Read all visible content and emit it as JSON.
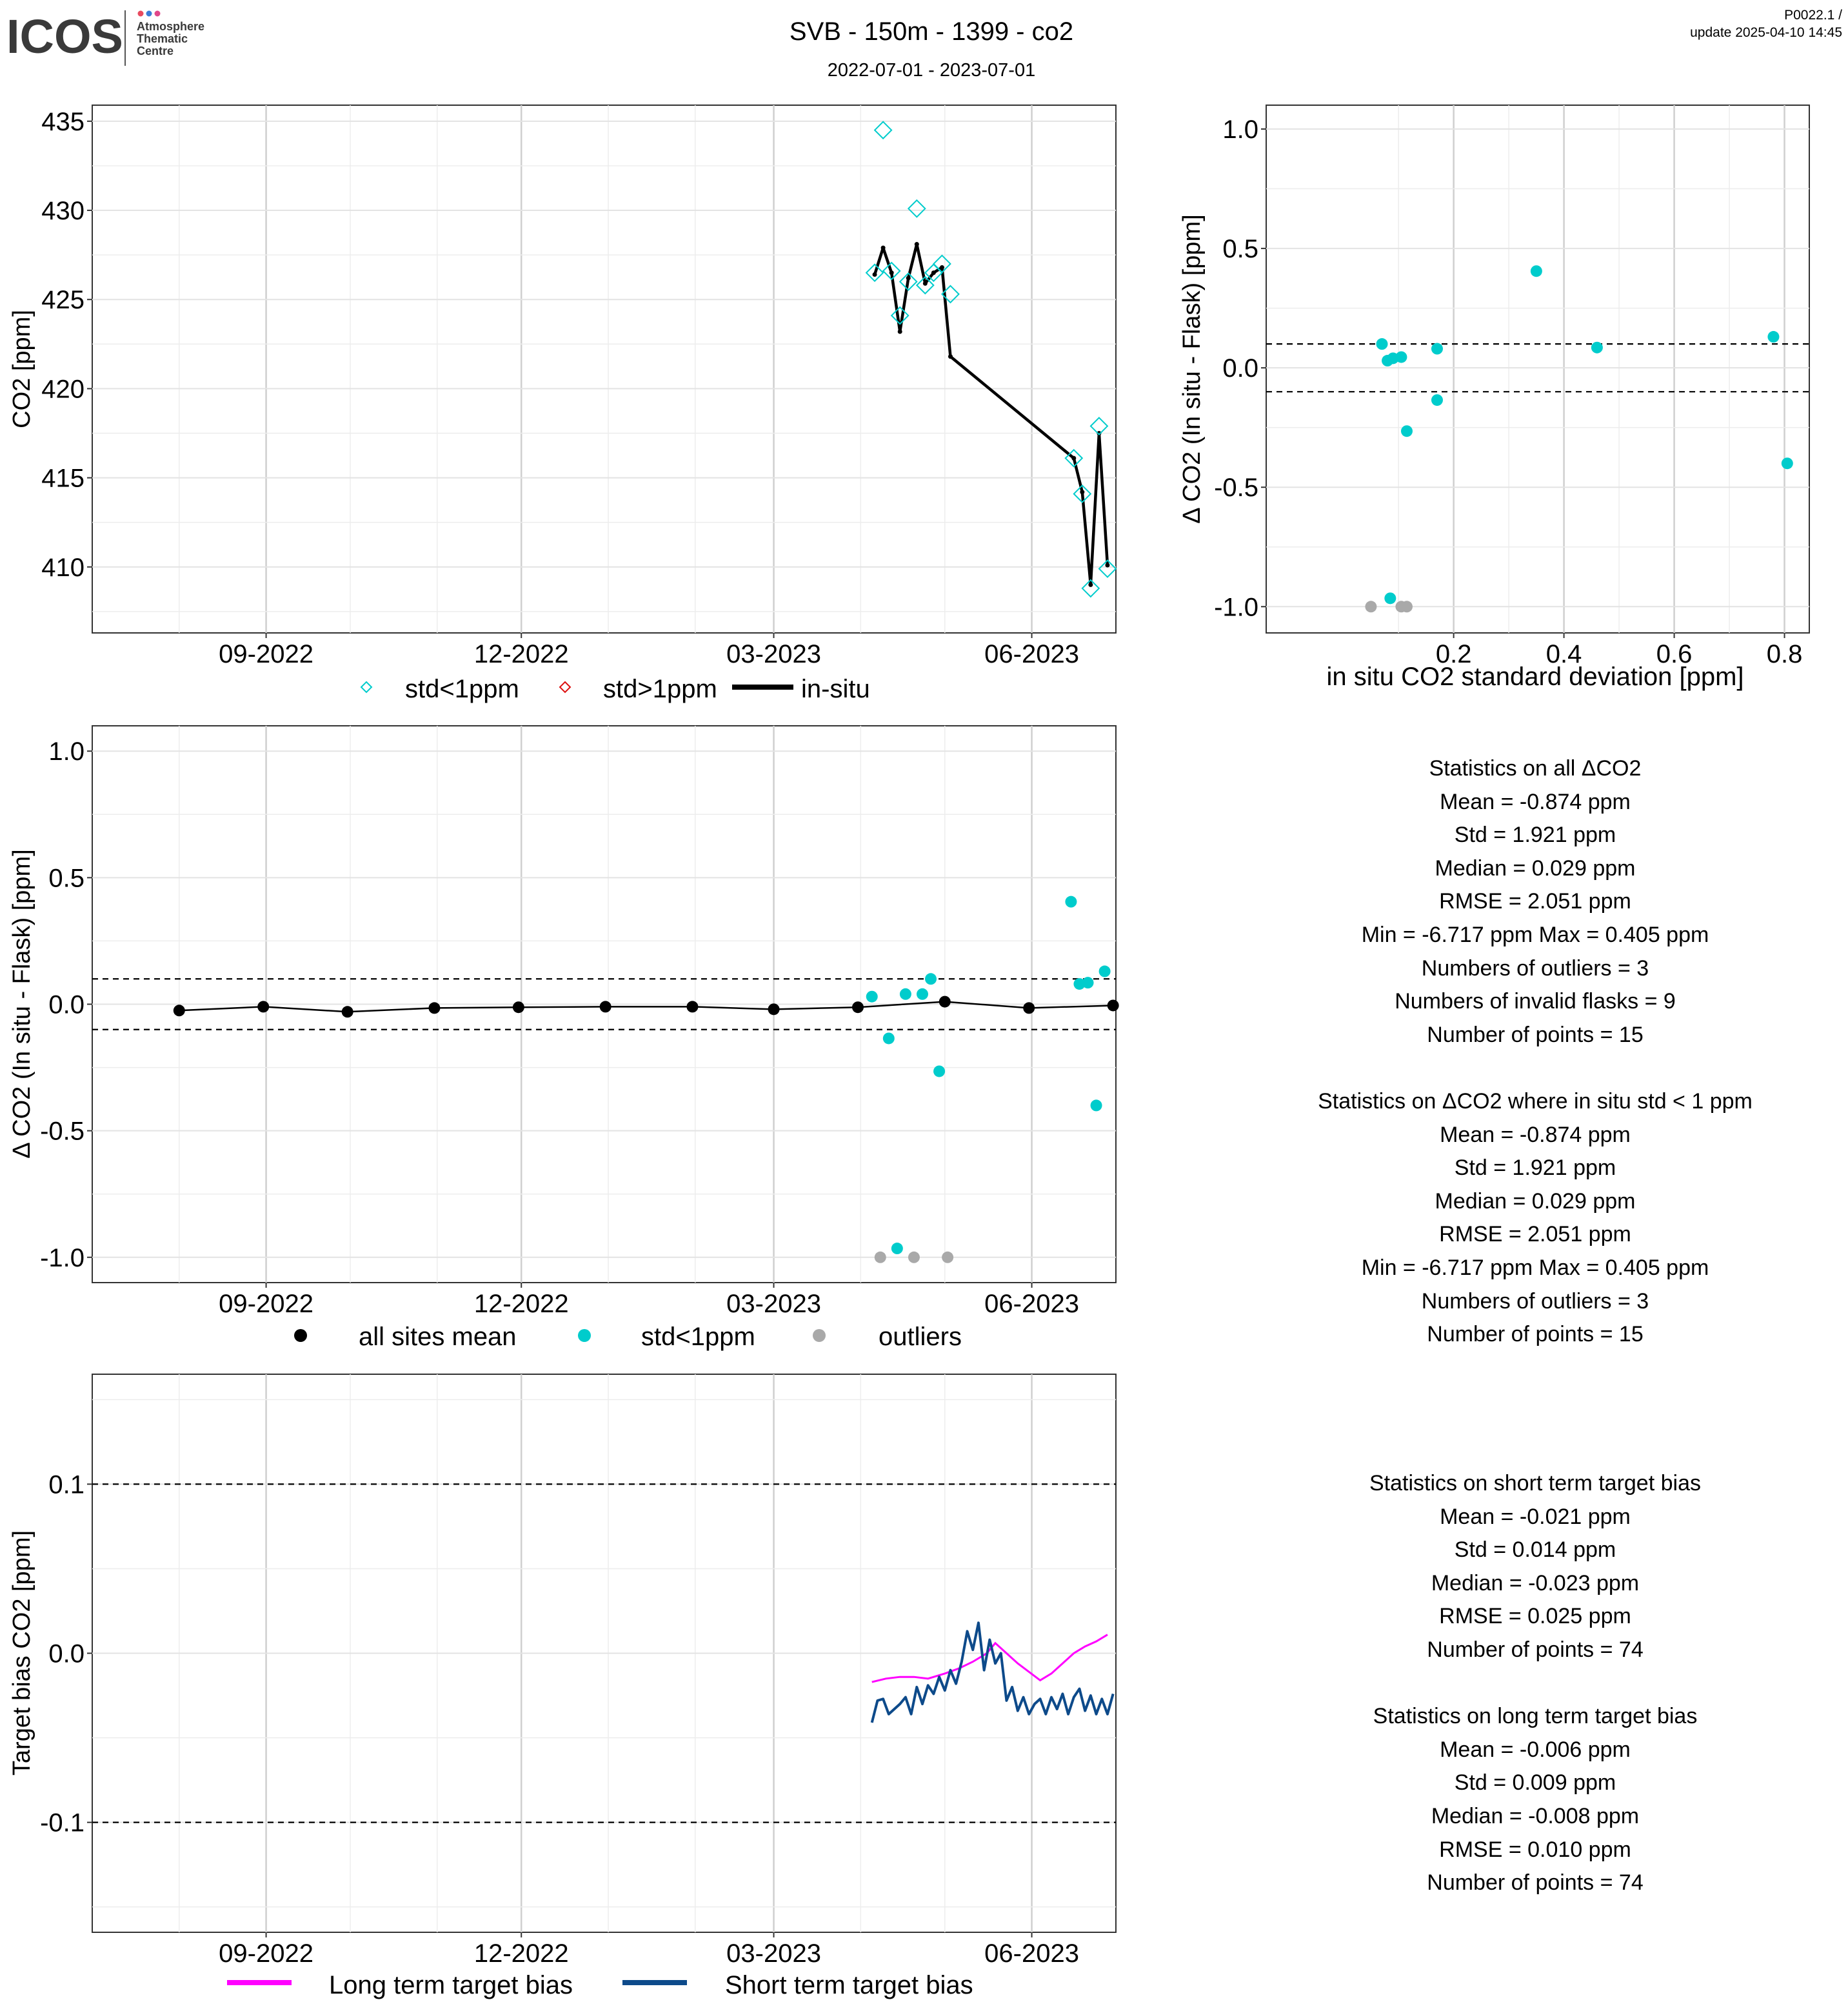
{
  "header": {
    "logo_text": "ICOS",
    "logo_sub": [
      "Atmosphere",
      "Thematic",
      "Centre"
    ],
    "title": "SVB - 150m - 1399 - co2",
    "date_range": "2022-07-01 - 2023-07-01",
    "version": "P0022.1 /",
    "update": "update  2025-04-10 14:45"
  },
  "colors": {
    "teal": "#00CCCC",
    "red": "#DD1111",
    "black": "#000000",
    "grey": "#A9A9A9",
    "magenta": "#FF00FF",
    "navy": "#0D4A8A"
  },
  "chart_data": [
    {
      "id": "co2_timeseries",
      "type": "line+scatter",
      "ylabel": "CO2 [ppm]",
      "xlim": [
        "2022-07-01",
        "2023-07-01"
      ],
      "ylim": [
        406.3,
        435.9
      ],
      "y_ticks": [
        410,
        415,
        420,
        425,
        430,
        435
      ],
      "x_ticks": [
        "2022-09-01",
        "2022-12-01",
        "2023-03-01",
        "2023-06-01"
      ],
      "x_tick_labels": [
        "09-2022",
        "12-2022",
        "03-2023",
        "06-2023"
      ],
      "grid": true,
      "legend_position": "bottom",
      "legend": [
        "std<1ppm",
        "std>1ppm",
        "in-situ"
      ],
      "series": [
        {
          "name": "std<1ppm",
          "points": [
            [
              "2023-04-06",
              426.5
            ],
            [
              "2023-04-09",
              434.5
            ],
            [
              "2023-04-12",
              426.6
            ],
            [
              "2023-04-15",
              424.1
            ],
            [
              "2023-04-18",
              426.0
            ],
            [
              "2023-04-21",
              430.1
            ],
            [
              "2023-04-24",
              425.8
            ],
            [
              "2023-04-27",
              426.5
            ],
            [
              "2023-04-30",
              427.0
            ],
            [
              "2023-05-03",
              425.3
            ],
            [
              "2023-06-16",
              416.1
            ],
            [
              "2023-06-19",
              414.1
            ],
            [
              "2023-06-22",
              408.8
            ],
            [
              "2023-06-25",
              417.9
            ],
            [
              "2023-06-28",
              409.9
            ]
          ]
        },
        {
          "name": "in-situ",
          "points": [
            [
              "2023-04-06",
              426.4
            ],
            [
              "2023-04-09",
              427.9
            ],
            [
              "2023-04-12",
              426.5
            ],
            [
              "2023-04-15",
              423.2
            ],
            [
              "2023-04-18",
              426.2
            ],
            [
              "2023-04-21",
              428.1
            ],
            [
              "2023-04-24",
              425.9
            ],
            [
              "2023-04-27",
              426.5
            ],
            [
              "2023-04-30",
              426.8
            ],
            [
              "2023-05-03",
              421.8
            ],
            [
              "2023-06-16",
              416.1
            ],
            [
              "2023-06-19",
              414.2
            ],
            [
              "2023-06-22",
              409.0
            ],
            [
              "2023-06-25",
              417.5
            ],
            [
              "2023-06-28",
              410.1
            ]
          ]
        }
      ]
    },
    {
      "id": "delta_vs_std",
      "type": "scatter",
      "xlabel": "in situ CO2 standard deviation [ppm]",
      "ylabel": "Δ CO2 (In situ - Flask) [ppm]",
      "xlim": [
        -0.14,
        0.845
      ],
      "ylim": [
        -1.11,
        1.1
      ],
      "x_ticks": [
        0.2,
        0.4,
        0.6,
        0.8
      ],
      "x_tick_labels": [
        "0.2",
        "0.4",
        "0.6",
        "0.8"
      ],
      "y_ticks": [
        -1.0,
        -0.5,
        0.0,
        0.5,
        1.0
      ],
      "y_tick_labels": [
        "-1.0",
        "-0.5",
        "0.0",
        "0.5",
        "1.0"
      ],
      "ref_lines": [
        0.1,
        -0.1
      ],
      "grid": true,
      "series": [
        {
          "name": "std<1ppm",
          "points": [
            [
              0.07,
              0.1
            ],
            [
              0.08,
              0.03
            ],
            [
              0.09,
              0.04
            ],
            [
              0.105,
              0.045
            ],
            [
              0.17,
              0.08
            ],
            [
              0.17,
              -0.135
            ],
            [
              0.115,
              -0.265
            ],
            [
              0.35,
              0.405
            ],
            [
              0.46,
              0.085
            ],
            [
              0.78,
              0.13
            ],
            [
              0.805,
              -0.4
            ],
            [
              0.085,
              -0.965
            ]
          ]
        },
        {
          "name": "outliers",
          "points": [
            [
              0.05,
              -1.0
            ],
            [
              0.105,
              -1.0
            ],
            [
              0.115,
              -1.0
            ]
          ]
        }
      ]
    },
    {
      "id": "delta_timeseries",
      "type": "scatter+line",
      "ylabel": "Δ CO2 (In situ - Flask) [ppm]",
      "xlim": [
        "2022-07-01",
        "2023-07-01"
      ],
      "ylim": [
        -1.1,
        1.1
      ],
      "y_ticks": [
        -1.0,
        -0.5,
        0.0,
        0.5,
        1.0
      ],
      "y_tick_labels": [
        "-1.0",
        "-0.5",
        "0.0",
        "0.5",
        "1.0"
      ],
      "x_ticks": [
        "2022-09-01",
        "2022-12-01",
        "2023-03-01",
        "2023-06-01"
      ],
      "x_tick_labels": [
        "09-2022",
        "12-2022",
        "03-2023",
        "06-2023"
      ],
      "ref_lines": [
        0.1,
        -0.1
      ],
      "grid": true,
      "legend_position": "bottom",
      "legend": [
        "all sites mean",
        "std<1ppm",
        "outliers"
      ],
      "series": [
        {
          "name": "all sites mean",
          "points": [
            [
              "2022-08-01",
              -0.025
            ],
            [
              "2022-08-31",
              -0.01
            ],
            [
              "2022-09-30",
              -0.03
            ],
            [
              "2022-10-31",
              -0.015
            ],
            [
              "2022-11-30",
              -0.012
            ],
            [
              "2022-12-31",
              -0.01
            ],
            [
              "2023-01-31",
              -0.01
            ],
            [
              "2023-03-01",
              -0.02
            ],
            [
              "2023-03-31",
              -0.012
            ],
            [
              "2023-05-01",
              0.01
            ],
            [
              "2023-05-31",
              -0.015
            ],
            [
              "2023-06-30",
              -0.005
            ]
          ]
        },
        {
          "name": "std<1ppm",
          "points": [
            [
              "2023-04-05",
              0.03
            ],
            [
              "2023-04-11",
              -0.135
            ],
            [
              "2023-04-14",
              -0.965
            ],
            [
              "2023-04-17",
              0.04
            ],
            [
              "2023-04-23",
              0.04
            ],
            [
              "2023-04-26",
              0.1
            ],
            [
              "2023-04-29",
              -0.265
            ],
            [
              "2023-06-15",
              0.405
            ],
            [
              "2023-06-18",
              0.08
            ],
            [
              "2023-06-21",
              0.085
            ],
            [
              "2023-06-24",
              -0.4
            ],
            [
              "2023-06-27",
              0.13
            ]
          ]
        },
        {
          "name": "outliers",
          "points": [
            [
              "2023-04-08",
              -1.0
            ],
            [
              "2023-04-20",
              -1.0
            ],
            [
              "2023-05-02",
              -1.0
            ]
          ]
        }
      ]
    },
    {
      "id": "target_bias",
      "type": "line",
      "ylabel": "Target bias CO2 [ppm]",
      "xlim": [
        "2022-07-01",
        "2023-07-01"
      ],
      "ylim": [
        -0.165,
        0.165
      ],
      "y_ticks": [
        -0.1,
        0.0,
        0.1
      ],
      "y_tick_labels": [
        "-0.1",
        "0.0",
        "0.1"
      ],
      "x_ticks": [
        "2022-09-01",
        "2022-12-01",
        "2023-03-01",
        "2023-06-01"
      ],
      "x_tick_labels": [
        "09-2022",
        "12-2022",
        "03-2023",
        "06-2023"
      ],
      "ref_lines": [
        0.1,
        -0.1
      ],
      "grid": true,
      "legend_position": "bottom",
      "legend": [
        "Long term target bias",
        "Short term target bias"
      ],
      "series": [
        {
          "name": "Long term target bias",
          "points": [
            [
              "2023-04-05",
              -0.017
            ],
            [
              "2023-04-10",
              -0.015
            ],
            [
              "2023-04-15",
              -0.014
            ],
            [
              "2023-04-20",
              -0.014
            ],
            [
              "2023-04-25",
              -0.015
            ],
            [
              "2023-05-01",
              -0.012
            ],
            [
              "2023-05-06",
              -0.009
            ],
            [
              "2023-05-11",
              -0.005
            ],
            [
              "2023-05-16",
              0.0
            ],
            [
              "2023-05-19",
              0.006
            ],
            [
              "2023-05-23",
              0.0
            ],
            [
              "2023-05-27",
              -0.006
            ],
            [
              "2023-05-31",
              -0.011
            ],
            [
              "2023-06-04",
              -0.016
            ],
            [
              "2023-06-08",
              -0.012
            ],
            [
              "2023-06-12",
              -0.006
            ],
            [
              "2023-06-16",
              0.0
            ],
            [
              "2023-06-20",
              0.004
            ],
            [
              "2023-06-24",
              0.007
            ],
            [
              "2023-06-28",
              0.011
            ]
          ]
        },
        {
          "name": "Short term target bias",
          "points": [
            [
              "2023-04-05",
              -0.041
            ],
            [
              "2023-04-07",
              -0.028
            ],
            [
              "2023-04-09",
              -0.027
            ],
            [
              "2023-04-11",
              -0.036
            ],
            [
              "2023-04-13",
              -0.033
            ],
            [
              "2023-04-15",
              -0.03
            ],
            [
              "2023-04-17",
              -0.026
            ],
            [
              "2023-04-19",
              -0.036
            ],
            [
              "2023-04-21",
              -0.02
            ],
            [
              "2023-04-23",
              -0.03
            ],
            [
              "2023-04-25",
              -0.019
            ],
            [
              "2023-04-27",
              -0.024
            ],
            [
              "2023-04-29",
              -0.014
            ],
            [
              "2023-05-01",
              -0.022
            ],
            [
              "2023-05-03",
              -0.01
            ],
            [
              "2023-05-05",
              -0.018
            ],
            [
              "2023-05-07",
              -0.005
            ],
            [
              "2023-05-09",
              0.013
            ],
            [
              "2023-05-11",
              0.002
            ],
            [
              "2023-05-13",
              0.018
            ],
            [
              "2023-05-15",
              -0.01
            ],
            [
              "2023-05-17",
              0.008
            ],
            [
              "2023-05-19",
              -0.006
            ],
            [
              "2023-05-21",
              0.0
            ],
            [
              "2023-05-23",
              -0.028
            ],
            [
              "2023-05-25",
              -0.02
            ],
            [
              "2023-05-27",
              -0.034
            ],
            [
              "2023-05-29",
              -0.026
            ],
            [
              "2023-05-31",
              -0.036
            ],
            [
              "2023-06-02",
              -0.03
            ],
            [
              "2023-06-04",
              -0.027
            ],
            [
              "2023-06-06",
              -0.036
            ],
            [
              "2023-06-08",
              -0.026
            ],
            [
              "2023-06-10",
              -0.033
            ],
            [
              "2023-06-12",
              -0.024
            ],
            [
              "2023-06-14",
              -0.036
            ],
            [
              "2023-06-16",
              -0.026
            ],
            [
              "2023-06-18",
              -0.021
            ],
            [
              "2023-06-20",
              -0.034
            ],
            [
              "2023-06-22",
              -0.025
            ],
            [
              "2023-06-24",
              -0.036
            ],
            [
              "2023-06-26",
              -0.027
            ],
            [
              "2023-06-28",
              -0.036
            ],
            [
              "2023-06-30",
              -0.024
            ]
          ]
        }
      ]
    }
  ],
  "stats_groups": [
    {
      "lines": [
        "Statistics on all ΔCO2",
        "Mean =  -0.874 ppm",
        "Std =  1.921 ppm",
        "Median =  0.029 ppm",
        "RMSE =  2.051 ppm",
        "Min =  -6.717 ppm Max =  0.405 ppm",
        "Numbers of outliers =  3",
        "Numbers of invalid flasks =  9",
        "Number of points =  15",
        "",
        "Statistics on ΔCO2 where in situ std < 1 ppm",
        "Mean =  -0.874 ppm",
        "Std =  1.921 ppm",
        "Median =  0.029 ppm",
        "RMSE =  2.051 ppm",
        "Min =  -6.717 ppm Max =  0.405 ppm",
        "Numbers of outliers =  3",
        "Number of points =  15"
      ]
    },
    {
      "lines": [
        "Statistics on short term target bias",
        "Mean =  -0.021 ppm",
        "Std =  0.014 ppm",
        "Median =  -0.023 ppm",
        "RMSE =  0.025 ppm",
        "Number of points =  74",
        "",
        "Statistics on long term target bias",
        "Mean =  -0.006 ppm",
        "Std =  0.009 ppm",
        "Median =  -0.008 ppm",
        "RMSE =  0.010 ppm",
        "Number of points =  74"
      ]
    }
  ]
}
